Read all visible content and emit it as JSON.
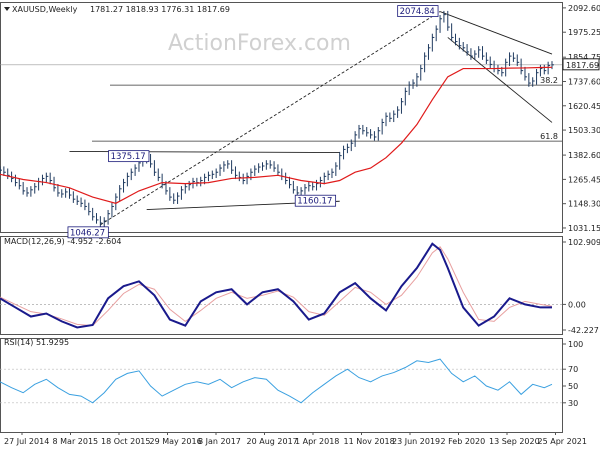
{
  "header": {
    "symbol": "XAUUSD,Weekly",
    "ohlc": "1781.27 1818.93 1776.31 1817.69",
    "triangle_icon": "down-triangle-icon"
  },
  "watermark": "ActionForex.com",
  "colors": {
    "price": "#1f3a5f",
    "ma": "#e01b1b",
    "macd": "#1a1a8c",
    "signal": "#e8a0a0",
    "rsi": "#3aa0e0",
    "grid": "#cccccc",
    "trend": "#222222",
    "label_border": "#1a1a7a"
  },
  "chart_data": [
    {
      "type": "line",
      "panel": "price",
      "title": "XAUUSD,Weekly",
      "ylim": [
        1031.0,
        2092.0
      ],
      "y_ticks": [
        2092.6,
        1975.25,
        1854.75,
        1737.6,
        1620.45,
        1503.3,
        1382.6,
        1265.45,
        1148.3,
        1031.15
      ],
      "y_tick_labels": [
        "2092.60",
        "1975.25",
        "1854.75",
        "1737.60",
        "1620.45",
        "1503.30",
        "1382.60",
        "1265.45",
        "1148.30",
        "1031.15"
      ],
      "current_price_label": "1817.69",
      "x_tick_labels": [
        "27 Jul 2014",
        "8 Mar 2015",
        "18 Oct 2015",
        "29 May 2016",
        "8 Jan 2017",
        "20 Aug 2017",
        "1 Apr 2018",
        "11 Nov 2018",
        "23 Jun 2019",
        "2 Feb 2020",
        "13 Sep 2020",
        "25 Apr 2021"
      ],
      "series": [
        {
          "name": "",
          "style": "close",
          "x": [
            0,
            1,
            2,
            3,
            4,
            5,
            6,
            7,
            8,
            9,
            10,
            11,
            12,
            13,
            14,
            15,
            16,
            17,
            18,
            19,
            20,
            21,
            22,
            23,
            24,
            25,
            26,
            27,
            28,
            29,
            30,
            31,
            32,
            33,
            34,
            35,
            36,
            37,
            38,
            39,
            40,
            41,
            42,
            43,
            44,
            45,
            46,
            47,
            48,
            49,
            50,
            51,
            52,
            53,
            54,
            55,
            56,
            57,
            58,
            59,
            60,
            61,
            62,
            63,
            64,
            65,
            66,
            67,
            68,
            69,
            70,
            71,
            72,
            73,
            74,
            75,
            76,
            77,
            78,
            79,
            80,
            81,
            82,
            83,
            84,
            85,
            86,
            87,
            88,
            89,
            90,
            91,
            92,
            93,
            94,
            95,
            96,
            97,
            98,
            99,
            100,
            101,
            102,
            103,
            104,
            105,
            106,
            107,
            108,
            109,
            110,
            111,
            112,
            113,
            114,
            115,
            116,
            117,
            118,
            119,
            120,
            121,
            122,
            123,
            124,
            125,
            126,
            127,
            128,
            129,
            130,
            131,
            132,
            133,
            134,
            135,
            136,
            137,
            138,
            139,
            140,
            141,
            142,
            143
          ],
          "values": [
            1310,
            1300,
            1285,
            1270,
            1250,
            1235,
            1210,
            1200,
            1215,
            1230,
            1255,
            1270,
            1280,
            1260,
            1225,
            1200,
            1195,
            1205,
            1190,
            1170,
            1160,
            1150,
            1135,
            1110,
            1085,
            1070,
            1055,
            1065,
            1100,
            1135,
            1180,
            1220,
            1250,
            1280,
            1300,
            1320,
            1345,
            1360,
            1370,
            1340,
            1300,
            1275,
            1240,
            1210,
            1180,
            1165,
            1185,
            1215,
            1230,
            1240,
            1255,
            1250,
            1260,
            1275,
            1285,
            1290,
            1300,
            1320,
            1335,
            1340,
            1310,
            1285,
            1275,
            1260,
            1280,
            1300,
            1315,
            1325,
            1330,
            1340,
            1335,
            1320,
            1300,
            1280,
            1260,
            1240,
            1215,
            1200,
            1210,
            1225,
            1235,
            1230,
            1245,
            1260,
            1280,
            1290,
            1300,
            1330,
            1380,
            1410,
            1420,
            1440,
            1480,
            1510,
            1500,
            1490,
            1480,
            1470,
            1500,
            1540,
            1570,
            1560,
            1580,
            1600,
            1640,
            1690,
            1720,
            1730,
            1760,
            1800,
            1860,
            1900,
            1950,
            1990,
            2040,
            2060,
            2000,
            1950,
            1930,
            1910,
            1900,
            1880,
            1860,
            1870,
            1890,
            1860,
            1840,
            1820,
            1800,
            1790,
            1780,
            1830,
            1860,
            1850,
            1830,
            1790,
            1760,
            1730,
            1740,
            1780,
            1800,
            1790,
            1815,
            1818
          ]
        },
        {
          "name": "",
          "style": "ma",
          "x": [
            0,
            6,
            12,
            18,
            24,
            30,
            36,
            42,
            48,
            54,
            60,
            66,
            72,
            78,
            84,
            88,
            92,
            96,
            100,
            104,
            108,
            112,
            116,
            120,
            124,
            128,
            132,
            136,
            140,
            143
          ],
          "values": [
            1290,
            1265,
            1250,
            1225,
            1180,
            1150,
            1210,
            1250,
            1245,
            1250,
            1270,
            1275,
            1285,
            1260,
            1245,
            1260,
            1300,
            1320,
            1370,
            1440,
            1530,
            1650,
            1760,
            1800,
            1800,
            1800,
            1802,
            1803,
            1805,
            1806
          ]
        }
      ],
      "annotations": [
        {
          "text": "2074.84",
          "x": 114,
          "y": 2074.84
        },
        {
          "text": "1375.17",
          "x": 36,
          "y": 1375.17
        },
        {
          "text": "1046.27",
          "x": 26,
          "y": 1046.27
        },
        {
          "text": "1160.17",
          "x": 77,
          "y": 1160.17
        },
        {
          "text": "38.2",
          "x": 142,
          "y": 1720.0
        },
        {
          "text": "61.8",
          "x": 142,
          "y": 1450.0
        }
      ],
      "fib_levels": [
        1720.0,
        1450.0
      ],
      "trendlines": [
        {
          "kind": "dotted",
          "from": [
            26,
            1046.27
          ],
          "to": [
            114,
            2074.84
          ]
        },
        {
          "kind": "solid",
          "from": [
            18,
            1400
          ],
          "to": [
            88,
            1395
          ]
        },
        {
          "kind": "solid",
          "from": [
            38,
            1120
          ],
          "to": [
            88,
            1160
          ]
        },
        {
          "kind": "solid",
          "from": [
            114,
            2074.84
          ],
          "to": [
            143,
            1870
          ]
        },
        {
          "kind": "solid",
          "from": [
            116,
            1950
          ],
          "to": [
            143,
            1540
          ]
        }
      ]
    },
    {
      "type": "line",
      "panel": "macd",
      "title": "MACD(12,26,9) -4.952 -2.604",
      "ylim": [
        -42.227,
        102.909
      ],
      "y_tick_labels": [
        "102.909",
        "0.00",
        "-42.227"
      ],
      "y_ticks": [
        102.909,
        0.0,
        -42.227
      ],
      "series": [
        {
          "name": "",
          "style": "macd",
          "x": [
            0,
            4,
            8,
            12,
            16,
            20,
            24,
            28,
            32,
            36,
            40,
            44,
            48,
            52,
            56,
            60,
            64,
            68,
            72,
            76,
            80,
            84,
            88,
            92,
            96,
            100,
            104,
            108,
            112,
            114,
            116,
            120,
            124,
            128,
            132,
            136,
            140,
            143
          ],
          "values": [
            10,
            -5,
            -20,
            -15,
            -28,
            -38,
            -34,
            10,
            30,
            38,
            15,
            -25,
            -35,
            5,
            20,
            25,
            0,
            20,
            25,
            5,
            -25,
            -15,
            20,
            35,
            10,
            -10,
            30,
            60,
            100,
            90,
            60,
            -5,
            -35,
            -20,
            10,
            0,
            -5,
            -5
          ]
        },
        {
          "name": "",
          "style": "signal",
          "x": [
            0,
            4,
            8,
            12,
            16,
            20,
            24,
            28,
            32,
            36,
            40,
            44,
            48,
            52,
            56,
            60,
            64,
            68,
            72,
            76,
            80,
            84,
            88,
            92,
            96,
            100,
            104,
            108,
            112,
            114,
            116,
            120,
            124,
            128,
            132,
            136,
            140,
            143
          ],
          "values": [
            12,
            0,
            -12,
            -16,
            -24,
            -33,
            -35,
            -10,
            18,
            33,
            25,
            -8,
            -28,
            -10,
            10,
            20,
            10,
            15,
            22,
            12,
            -12,
            -18,
            5,
            28,
            20,
            0,
            15,
            45,
            85,
            95,
            75,
            20,
            -25,
            -28,
            -5,
            5,
            0,
            -3
          ]
        }
      ]
    },
    {
      "type": "line",
      "panel": "rsi",
      "title": "RSI(14) 51.9295",
      "ylim": [
        0,
        100
      ],
      "y_tick_labels": [
        "100",
        "70",
        "50",
        "30"
      ],
      "y_ticks": [
        100,
        70,
        50,
        30
      ],
      "series": [
        {
          "name": "",
          "style": "rsi",
          "x": [
            0,
            3,
            6,
            9,
            12,
            15,
            18,
            21,
            24,
            27,
            30,
            33,
            36,
            39,
            42,
            45,
            48,
            51,
            54,
            57,
            60,
            63,
            66,
            69,
            72,
            75,
            78,
            81,
            84,
            87,
            90,
            93,
            96,
            99,
            102,
            105,
            108,
            111,
            114,
            117,
            120,
            123,
            126,
            129,
            132,
            135,
            138,
            141,
            143
          ],
          "values": [
            55,
            48,
            42,
            52,
            58,
            48,
            40,
            38,
            30,
            42,
            58,
            65,
            68,
            50,
            38,
            45,
            52,
            55,
            52,
            58,
            48,
            55,
            60,
            58,
            45,
            38,
            30,
            42,
            52,
            62,
            70,
            60,
            55,
            62,
            66,
            72,
            80,
            78,
            82,
            65,
            55,
            62,
            50,
            45,
            55,
            40,
            52,
            48,
            52
          ]
        }
      ]
    }
  ]
}
